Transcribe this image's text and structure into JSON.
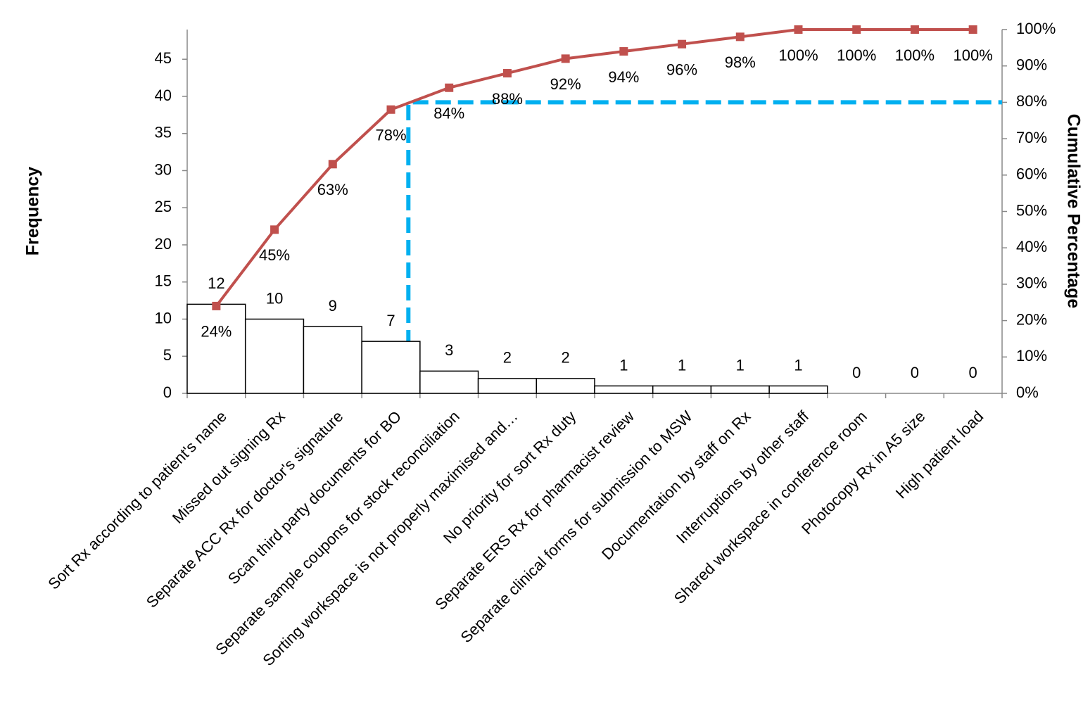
{
  "chart_data": {
    "type": "pareto",
    "y_label": "Frequency",
    "y2_label": "Cumulative Percentage",
    "categories": [
      "Sort Rx according to patient's name",
      "Missed out signing Rx",
      "Separate ACC Rx for doctor's signature",
      "Scan third party documents for BO",
      "Separate sample coupons for stock reconciliation",
      "Sorting workspace is not properly maximised and…",
      "No priority for sort Rx duty",
      "Separate ERS Rx for pharmacist review",
      "Separate clinical forms for submission to MSW",
      "Documentation by staff on Rx",
      "Interruptions by other staff",
      "Shared workspace in conference room",
      "Photocopy Rx in A5 size",
      "High patient load"
    ],
    "series": [
      {
        "type": "bar",
        "color": "#ffffff",
        "values": [
          12,
          10,
          9,
          7,
          3,
          2,
          2,
          1,
          1,
          1,
          1,
          0,
          0,
          0
        ]
      },
      {
        "type": "line",
        "axis": "y2",
        "color": "#c0504d",
        "values": [
          24,
          45,
          63,
          78,
          84,
          88,
          92,
          94,
          96,
          98,
          100,
          100,
          100,
          100
        ],
        "value_labels": [
          "24%",
          "45%",
          "63%",
          "78%",
          "84%",
          "88%",
          "92%",
          "94%",
          "96%",
          "98%",
          "100%",
          "100%",
          "100%",
          "100%"
        ]
      }
    ],
    "ylim": [
      0,
      49
    ],
    "yticks": [
      0,
      5,
      10,
      15,
      20,
      25,
      30,
      35,
      40,
      45
    ],
    "y2lim": [
      0,
      100
    ],
    "y2ticks": [
      {
        "value": 0,
        "label": "0%"
      },
      {
        "value": 10,
        "label": "10%"
      },
      {
        "value": 20,
        "label": "20%"
      },
      {
        "value": 30,
        "label": "30%"
      },
      {
        "value": 40,
        "label": "40%"
      },
      {
        "value": 50,
        "label": "50%"
      },
      {
        "value": 60,
        "label": "60%"
      },
      {
        "value": 70,
        "label": "70%"
      },
      {
        "value": 80,
        "label": "80%"
      },
      {
        "value": 90,
        "label": "90%"
      },
      {
        "value": 100,
        "label": "100%"
      }
    ],
    "threshold_y2": 80,
    "threshold_color": "#00b0f0"
  }
}
